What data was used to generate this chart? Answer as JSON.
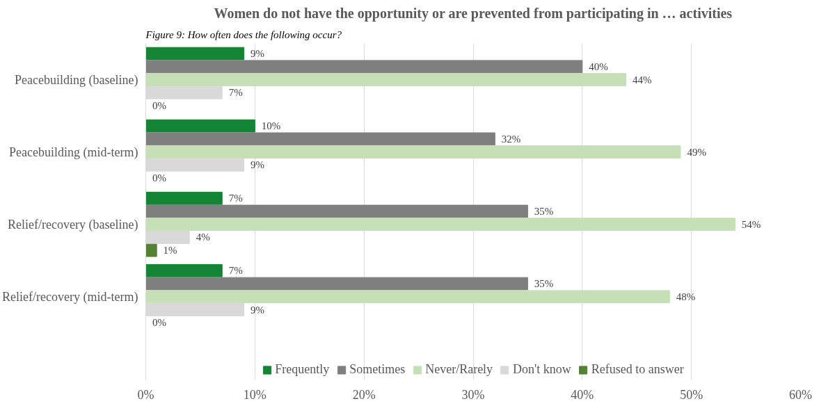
{
  "chart_data": {
    "type": "bar",
    "orientation": "horizontal",
    "title": "Women do not have the opportunity or are prevented from participating in … activities",
    "annotations": [
      "Figure 9: How often does the following occur?"
    ],
    "categories": [
      "Peacebuilding (baseline)",
      "Peacebuilding (mid-term)",
      "Relief/recovery (baseline)",
      "Relief/recovery (mid-term)"
    ],
    "series": [
      {
        "name": "Frequently",
        "color": "#138535",
        "values": [
          9,
          10,
          7,
          7
        ],
        "value_labels": [
          "9%",
          "10%",
          "7%",
          "7%"
        ]
      },
      {
        "name": "Sometimes",
        "color": "#7f7f7f",
        "values": [
          40,
          32,
          35,
          35
        ],
        "value_labels": [
          "40%",
          "32%",
          "35%",
          "35%"
        ]
      },
      {
        "name": "Never/Rarely",
        "color": "#c5e0b4",
        "values": [
          44,
          49,
          54,
          48
        ],
        "value_labels": [
          "44%",
          "49%",
          "54%",
          "48%"
        ]
      },
      {
        "name": "Don't know",
        "color": "#d9d9d9",
        "values": [
          7,
          9,
          4,
          9
        ],
        "value_labels": [
          "7%",
          "9%",
          "4%",
          "9%"
        ]
      },
      {
        "name": "Refused to answer",
        "color": "#548235",
        "values": [
          0,
          0,
          1,
          0
        ],
        "value_labels": [
          "0%",
          "0%",
          "1%",
          "0%"
        ]
      }
    ],
    "xlim": [
      0,
      60
    ],
    "xticks": [
      {
        "value": 0,
        "label": "0%"
      },
      {
        "value": 10,
        "label": "10%"
      },
      {
        "value": 20,
        "label": "20%"
      },
      {
        "value": 30,
        "label": "30%"
      },
      {
        "value": 40,
        "label": "40%"
      },
      {
        "value": 50,
        "label": "50%"
      },
      {
        "value": 60,
        "label": "60%"
      }
    ],
    "grid": "x",
    "legend": "bottom"
  }
}
